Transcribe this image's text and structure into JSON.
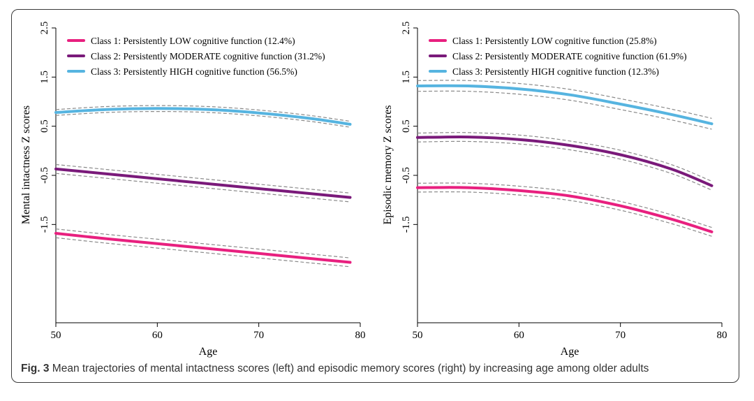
{
  "caption": {
    "label": "Fig. 3",
    "text": "Mean trajectories of mental intactness scores (left) and episodic memory scores (right) by increasing age among older adults"
  },
  "colors": {
    "class1": "#e8207f",
    "class2": "#7a1a7a",
    "class3": "#56b4e0",
    "ci": "#8a8a8a"
  },
  "chart_data": [
    {
      "type": "line",
      "xlabel": "Age",
      "ylabel": "Mental intactness Z scores",
      "xlim": [
        50,
        80
      ],
      "ylim": [
        -3.5,
        2.5
      ],
      "xticks": [
        "50",
        "60",
        "70",
        "80"
      ],
      "yticks": [
        "2.5",
        "1.5",
        "0.5",
        "-0.5",
        "-1.5"
      ],
      "legend_position": "top-left",
      "x": [
        50,
        55,
        60,
        65,
        70,
        75,
        79
      ],
      "series": [
        {
          "name": "Class 1: Persistently LOW cognitive function (12.4%)",
          "color_key": "class1",
          "values": [
            -1.68,
            -1.79,
            -1.89,
            -1.99,
            -2.09,
            -2.19,
            -2.27
          ],
          "ci_width": 0.09
        },
        {
          "name": "Class 2: Persistently MODERATE cognitive function (31.2%)",
          "color_key": "class2",
          "values": [
            -0.37,
            -0.47,
            -0.57,
            -0.67,
            -0.77,
            -0.87,
            -0.95
          ],
          "ci_width": 0.09
        },
        {
          "name": "Class 3: Persistently HIGH cognitive function (56.5%)",
          "color_key": "class3",
          "values": [
            0.78,
            0.84,
            0.86,
            0.84,
            0.77,
            0.66,
            0.54
          ],
          "ci_width": 0.06
        }
      ]
    },
    {
      "type": "line",
      "xlabel": "Age",
      "ylabel": "Episodic memory Z scores",
      "xlim": [
        50,
        80
      ],
      "ylim": [
        -3.5,
        2.5
      ],
      "xticks": [
        "50",
        "60",
        "70",
        "80"
      ],
      "yticks": [
        "2.5",
        "1.5",
        "0.5",
        "-0.5",
        "-1.5"
      ],
      "legend_position": "top-left",
      "x": [
        50,
        55,
        60,
        65,
        70,
        75,
        79
      ],
      "series": [
        {
          "name": "Class 1: Persistently LOW cognitive function (25.8%)",
          "color_key": "class1",
          "values": [
            -0.75,
            -0.75,
            -0.81,
            -0.92,
            -1.12,
            -1.39,
            -1.65
          ],
          "ci_width": 0.09
        },
        {
          "name": "Class 2: Persistently MODERATE cognitive function (61.9%)",
          "color_key": "class2",
          "values": [
            0.27,
            0.28,
            0.23,
            0.11,
            -0.08,
            -0.37,
            -0.71
          ],
          "ci_width": 0.09
        },
        {
          "name": "Class 3: Persistently HIGH cognitive function (12.3%)",
          "color_key": "class3",
          "values": [
            1.32,
            1.32,
            1.26,
            1.14,
            0.95,
            0.74,
            0.55
          ],
          "ci_width": 0.11
        }
      ]
    }
  ]
}
